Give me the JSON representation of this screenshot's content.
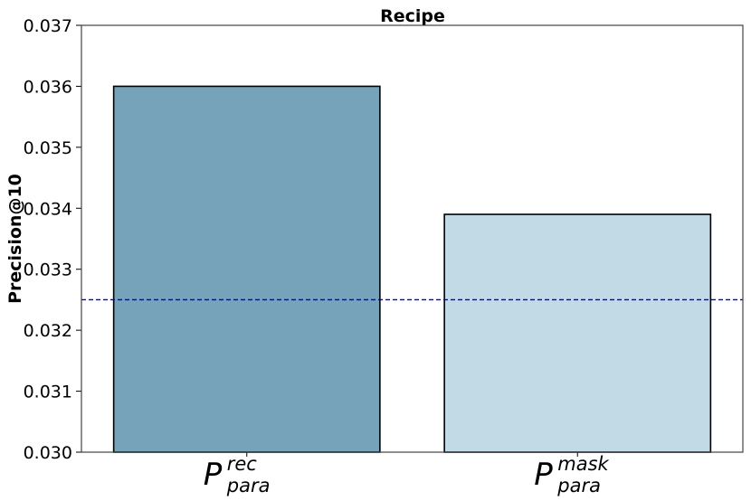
{
  "chart_data": {
    "type": "bar",
    "title": "Recipe",
    "ylabel": "Precision@10",
    "xlabel": "",
    "categories": [
      {
        "main": "P",
        "sup": "rec",
        "sub": "para"
      },
      {
        "main": "P",
        "sup": "mask",
        "sub": "para"
      }
    ],
    "values": [
      0.036,
      0.0339
    ],
    "bar_colors": [
      "#76a3ba",
      "#c2dae5"
    ],
    "ylim": [
      0.03,
      0.037
    ],
    "yticks": [
      "0.030",
      "0.031",
      "0.032",
      "0.033",
      "0.034",
      "0.035",
      "0.036",
      "0.037"
    ],
    "baseline": {
      "value": 0.0325,
      "color": "#0000cc",
      "style": "dashed"
    },
    "grid": false,
    "legend": "none"
  }
}
